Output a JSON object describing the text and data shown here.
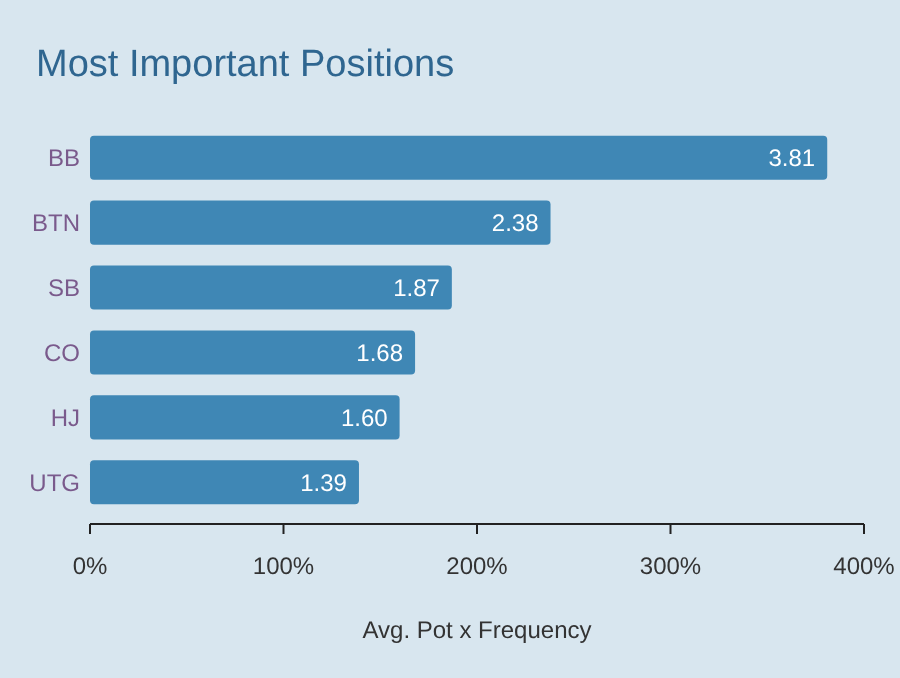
{
  "chart_data": {
    "type": "bar",
    "orientation": "horizontal",
    "title": "Most Important Positions",
    "xlabel": "Avg. Pot x Frequency",
    "categories": [
      "BB",
      "BTN",
      "SB",
      "CO",
      "HJ",
      "UTG"
    ],
    "values": [
      3.81,
      2.38,
      1.87,
      1.68,
      1.6,
      1.39
    ],
    "value_labels": [
      "3.81",
      "2.38",
      "1.87",
      "1.68",
      "1.60",
      "1.39"
    ],
    "color": "#3f87b5",
    "xlim": [
      0,
      4
    ],
    "xticks": [
      {
        "value": 0,
        "label": "0%"
      },
      {
        "value": 1,
        "label": "100%"
      },
      {
        "value": 2,
        "label": "200%"
      },
      {
        "value": 3,
        "label": "300%"
      },
      {
        "value": 4,
        "label": "400%"
      }
    ],
    "grid": false
  }
}
